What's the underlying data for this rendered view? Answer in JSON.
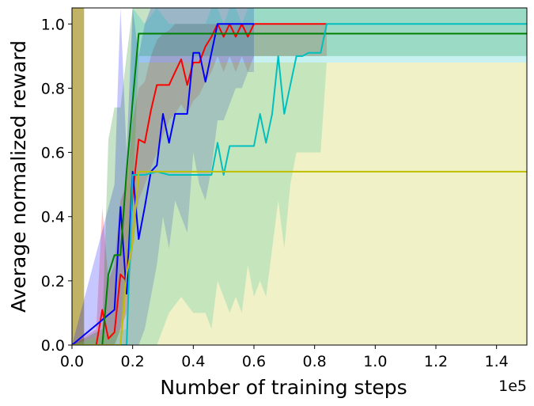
{
  "chart_data": {
    "type": "line",
    "xlabel": "Number of training steps",
    "ylabel": "Average normalized reward",
    "x_offset_label": "1e5",
    "xlim": [
      0,
      150000
    ],
    "ylim": [
      0,
      1.05
    ],
    "x_ticks": [
      0,
      20000,
      40000,
      60000,
      80000,
      100000,
      120000,
      140000
    ],
    "x_tick_labels": [
      "0.0",
      "0.2",
      "0.4",
      "0.6",
      "0.8",
      "1.0",
      "1.2",
      "1.4"
    ],
    "y_ticks": [
      0,
      0.2,
      0.4,
      0.6,
      0.8,
      1.0
    ],
    "y_tick_labels": [
      "0.0",
      "0.2",
      "0.4",
      "0.6",
      "0.8",
      "1.0"
    ],
    "grid": false,
    "series": [
      {
        "color": "#b5a64a",
        "fill_only": true,
        "x": [
          0,
          4000
        ],
        "lower": [
          0,
          0
        ],
        "upper": [
          1.05,
          1.05
        ]
      },
      {
        "color": "#ff0000",
        "x": [
          0,
          8000,
          10000,
          12000,
          14000,
          16000,
          18000,
          20000,
          22000,
          24000,
          26000,
          28000,
          30000,
          32000,
          34000,
          36000,
          38000,
          40000,
          42000,
          44000,
          46000,
          48000,
          50000,
          52000,
          54000,
          56000,
          58000,
          60000,
          84000
        ],
        "y": [
          0,
          0,
          0.11,
          0.02,
          0.04,
          0.22,
          0.2,
          0.47,
          0.64,
          0.63,
          0.73,
          0.81,
          0.81,
          0.81,
          0.85,
          0.89,
          0.81,
          0.88,
          0.88,
          0.93,
          0.96,
          1.0,
          0.96,
          1.0,
          0.96,
          1.0,
          0.96,
          1.0,
          1.0
        ],
        "lower": [
          0,
          0,
          0,
          0,
          0,
          0.05,
          0.1,
          0.3,
          0.45,
          0.5,
          0.55,
          0.6,
          0.65,
          0.7,
          0.72,
          0.75,
          0.72,
          0.76,
          0.78,
          0.82,
          0.85,
          0.9,
          0.85,
          0.9,
          0.85,
          0.9,
          0.85,
          0.9,
          0.9
        ],
        "upper": [
          0,
          0.05,
          0.43,
          0.2,
          0.25,
          0.45,
          0.5,
          0.7,
          0.8,
          0.82,
          0.9,
          0.95,
          0.97,
          0.98,
          1.0,
          1.0,
          1.0,
          1.0,
          1.0,
          1.0,
          1.0,
          1.0,
          1.0,
          1.0,
          1.0,
          1.0,
          1.0,
          1.0,
          1.0
        ]
      },
      {
        "color": "#0000ff",
        "x": [
          0,
          14000,
          16000,
          18000,
          20000,
          22000,
          24000,
          26000,
          28000,
          30000,
          32000,
          34000,
          36000,
          38000,
          40000,
          42000,
          44000,
          46000,
          48000,
          50000,
          52000,
          54000,
          56000,
          58000,
          60000
        ],
        "y": [
          0,
          0.11,
          0.43,
          0.16,
          0.54,
          0.33,
          0.43,
          0.54,
          0.56,
          0.72,
          0.63,
          0.72,
          0.72,
          0.72,
          0.91,
          0.91,
          0.82,
          0.91,
          1.0,
          1.0,
          1.0,
          1.0,
          1.0,
          1.0,
          1.0
        ],
        "lower": [
          0,
          0,
          0,
          0,
          0,
          0,
          0.05,
          0.15,
          0.25,
          0.4,
          0.3,
          0.45,
          0.4,
          0.35,
          0.6,
          0.5,
          0.45,
          0.55,
          0.7,
          0.7,
          0.75,
          0.8,
          0.8,
          0.85,
          0.85
        ],
        "upper": [
          0,
          0.5,
          1.05,
          0.6,
          1.05,
          0.9,
          1.0,
          1.05,
          1.05,
          1.05,
          1.05,
          1.05,
          1.05,
          1.05,
          1.05,
          1.05,
          1.05,
          1.05,
          1.05,
          1.05,
          1.05,
          1.05,
          1.05,
          1.05,
          1.05
        ]
      },
      {
        "color": "#008000",
        "x": [
          0,
          10000,
          12000,
          14000,
          16000,
          18000,
          20000,
          22000,
          150000
        ],
        "y": [
          0,
          0,
          0.22,
          0.28,
          0.28,
          0.54,
          0.76,
          0.97,
          0.97
        ],
        "lower": [
          0,
          0,
          0,
          0,
          0.05,
          0.2,
          0.45,
          0.9,
          0.9
        ],
        "upper": [
          0,
          0.05,
          0.64,
          0.74,
          0.74,
          0.9,
          1.05,
          1.05,
          1.05
        ]
      },
      {
        "color": "#00bfbf",
        "x": [
          0,
          18000,
          20000,
          24000,
          28000,
          32000,
          36000,
          40000,
          44000,
          46000,
          48000,
          50000,
          52000,
          54000,
          56000,
          58000,
          60000,
          62000,
          64000,
          66000,
          68000,
          70000,
          72000,
          74000,
          76000,
          78000,
          80000,
          82000,
          84000,
          150000
        ],
        "y": [
          0,
          0,
          0.53,
          0.53,
          0.54,
          0.53,
          0.53,
          0.53,
          0.53,
          0.53,
          0.63,
          0.53,
          0.62,
          0.62,
          0.62,
          0.62,
          0.62,
          0.72,
          0.63,
          0.72,
          0.9,
          0.72,
          0.81,
          0.9,
          0.9,
          0.91,
          0.91,
          0.91,
          1.0,
          1.0
        ],
        "lower": [
          0,
          0,
          0,
          0,
          0,
          0.1,
          0.15,
          0.1,
          0.1,
          0.05,
          0.2,
          0.15,
          0.1,
          0.15,
          0.1,
          0.25,
          0.15,
          0.2,
          0.15,
          0.3,
          0.45,
          0.3,
          0.5,
          0.6,
          0.6,
          0.6,
          0.6,
          0.6,
          0.88,
          0.88
        ],
        "upper": [
          0,
          0.05,
          1.05,
          1.0,
          1.05,
          1.0,
          1.0,
          1.0,
          1.0,
          1.05,
          1.05,
          1.0,
          1.05,
          1.05,
          1.0,
          1.05,
          1.05,
          1.05,
          1.05,
          1.05,
          1.05,
          1.05,
          1.05,
          1.05,
          1.05,
          1.05,
          1.05,
          1.05,
          1.05,
          1.05
        ]
      },
      {
        "color": "#bfbf00",
        "x": [
          0,
          16000,
          18000,
          20000,
          22000,
          150000
        ],
        "y": [
          0,
          0,
          0.22,
          0.32,
          0.54,
          0.54
        ],
        "lower": [
          0,
          0,
          0,
          0,
          0,
          0
        ],
        "upper": [
          0,
          0.05,
          0.5,
          0.7,
          0.88,
          0.88
        ]
      }
    ]
  }
}
